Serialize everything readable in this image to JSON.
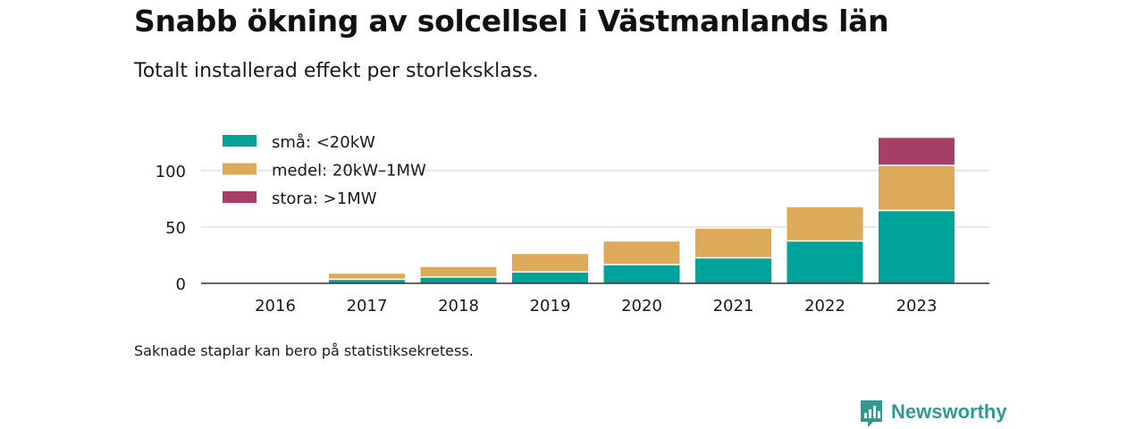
{
  "title": "Snabb ökning av solcellsel i Västmanlands län",
  "subtitle": "Totalt installerad effekt per storleksklass.",
  "note": "Saknade staplar kan bero på statistiksekretess.",
  "brand": {
    "name": "Newsworthy",
    "icon": "newsworthy-logo-icon",
    "color": "#2f9a90"
  },
  "chart_data": {
    "type": "bar",
    "stacked": true,
    "categories": [
      "2016",
      "2017",
      "2018",
      "2019",
      "2020",
      "2021",
      "2022",
      "2023"
    ],
    "series": [
      {
        "name": "små: <20kW",
        "color": "#00a39a",
        "values": [
          0.3,
          3,
          5,
          9.5,
          16,
          22,
          37,
          64
        ]
      },
      {
        "name": "medel: 20kW–1MW",
        "color": "#dbab5a",
        "values": [
          0.2,
          5.5,
          9.5,
          16.5,
          21,
          26.5,
          30.5,
          40
        ]
      },
      {
        "name": "stora: >1MW",
        "color": "#a63f68",
        "values": [
          0,
          0,
          0,
          0,
          0,
          0,
          0,
          25
        ]
      }
    ],
    "ylim": [
      0,
      130
    ],
    "yticks": [
      0,
      50,
      100
    ],
    "xlabel": "",
    "ylabel": "",
    "grid": true,
    "legend_position": "top-left"
  }
}
